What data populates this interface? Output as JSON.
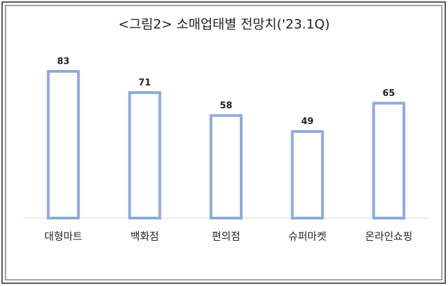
{
  "chart_data": {
    "type": "bar",
    "title": "<그림2> 소매업태별 전망치('23.1Q)",
    "categories": [
      "대형마트",
      "백화점",
      "편의점",
      "슈퍼마켓",
      "온라인쇼핑"
    ],
    "values": [
      83,
      71,
      58,
      49,
      65
    ],
    "color": "#8eaadb",
    "ylim": [
      0,
      90
    ]
  }
}
